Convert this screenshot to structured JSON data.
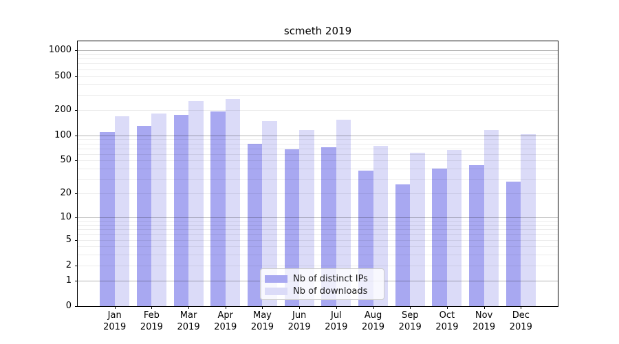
{
  "title": "scmeth 2019",
  "chart_data": {
    "type": "bar",
    "title": "scmeth 2019",
    "categories": [
      "Jan",
      "Feb",
      "Mar",
      "Apr",
      "May",
      "Jun",
      "Jul",
      "Aug",
      "Sep",
      "Oct",
      "Nov",
      "Dec"
    ],
    "category_year": "2019",
    "series": [
      {
        "name": "Nb of distinct IPs",
        "color": "#a8a8f1",
        "values": [
          110,
          130,
          175,
          190,
          80,
          68,
          72,
          38,
          26,
          40,
          44,
          28
        ]
      },
      {
        "name": "Nb of downloads",
        "color": "#dbdbf8",
        "values": [
          168,
          180,
          255,
          270,
          148,
          116,
          154,
          75,
          62,
          67,
          115,
          104
        ]
      }
    ],
    "y_axis": {
      "scale": "log1p",
      "ticks": [
        0,
        1,
        2,
        5,
        10,
        20,
        50,
        100,
        200,
        500,
        1000
      ],
      "major_gridlines": [
        1,
        10,
        100,
        1000
      ],
      "range_top": 1280
    },
    "xlabel": "",
    "ylabel": "",
    "grid": "horizontal major+minor",
    "legend_position": "lower center"
  },
  "legend": {
    "items": [
      {
        "label": "Nb of distinct IPs"
      },
      {
        "label": "Nb of downloads"
      }
    ]
  }
}
